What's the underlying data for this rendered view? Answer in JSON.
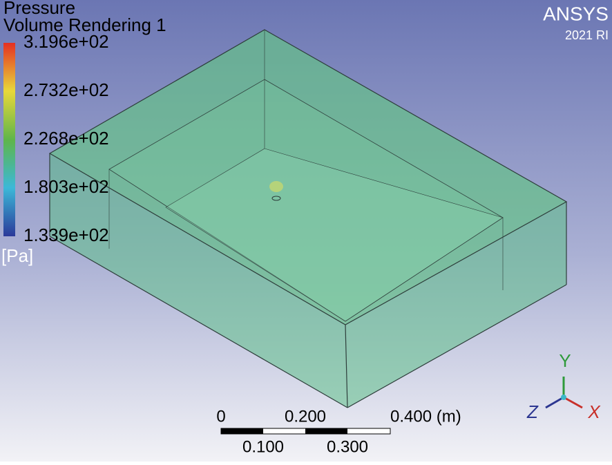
{
  "legend": {
    "title": "Pressure",
    "subtitle": "Volume Rendering 1",
    "labels": [
      "3.196e+02",
      "2.732e+02",
      "2.268e+02",
      "1.803e+02",
      "1.339e+02"
    ],
    "unit": "[Pa]"
  },
  "brand": {
    "name": "ANSYS",
    "version": "2021 RI"
  },
  "scale_bar": {
    "top_labels": [
      "0",
      "0.200",
      "0.400 (m)"
    ],
    "bottom_labels": [
      "0.100",
      "0.300"
    ]
  },
  "axes": {
    "y": "Y",
    "z": "Z",
    "x": "X"
  }
}
